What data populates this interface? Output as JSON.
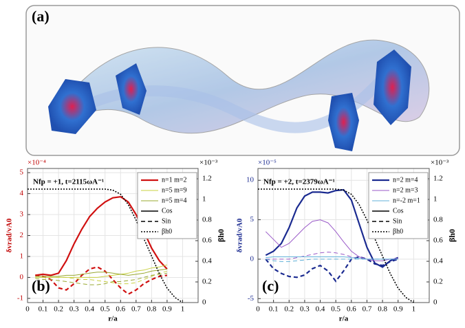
{
  "panel_a": {
    "label": "(a)"
  },
  "chart_data": [
    {
      "type": "line",
      "panel_label": "(b)",
      "annotation": "Nfp = +1,  t=2115ωA⁻¹",
      "y_exponent": "×10⁻⁴",
      "y2_exponent": "×10⁻³",
      "xlabel": "r/a",
      "ylabel": "δvrad/vA0",
      "y2label": "βh0",
      "ylabel_color": "#c00000",
      "xlim": [
        0,
        1.1
      ],
      "xticks": [
        0,
        0.1,
        0.2,
        0.3,
        0.4,
        0.5,
        0.6,
        0.7,
        0.8,
        0.9,
        1
      ],
      "ylim": [
        -1.2,
        5.2
      ],
      "yticks": [
        -1,
        0,
        1,
        2,
        3,
        4,
        5
      ],
      "y2lim": [
        0,
        1.3
      ],
      "y2ticks": [
        0,
        0.2,
        0.4,
        0.6,
        0.8,
        1,
        1.2
      ],
      "grid": true,
      "x": [
        0.05,
        0.1,
        0.15,
        0.2,
        0.25,
        0.3,
        0.35,
        0.4,
        0.45,
        0.5,
        0.55,
        0.6,
        0.65,
        0.7,
        0.75,
        0.8,
        0.85,
        0.9
      ],
      "series": [
        {
          "name": "n=1 m=2",
          "color": "#d01010",
          "width": 2.2,
          "values": [
            0.1,
            0.15,
            0.1,
            0.2,
            0.8,
            1.6,
            2.3,
            2.9,
            3.3,
            3.6,
            3.8,
            3.85,
            3.6,
            3.0,
            2.2,
            1.4,
            0.8,
            0.4
          ],
          "sin_values": [
            0.1,
            0.05,
            -0.1,
            -0.5,
            -0.6,
            -0.3,
            0.1,
            0.4,
            0.5,
            0.3,
            -0.1,
            -0.5,
            -0.8,
            -0.6,
            -0.3,
            -0.1,
            0.05,
            0.1
          ]
        },
        {
          "name": "n=5 m=9",
          "color": "#c8d040",
          "width": 1,
          "values": [
            0,
            0,
            0,
            0,
            0,
            0,
            0,
            0,
            0,
            0.05,
            0.1,
            0.15,
            0.2,
            0.3,
            0.35,
            0.45,
            0.5,
            0.6
          ],
          "sin_values": [
            0,
            0,
            0,
            0,
            0,
            -0.05,
            -0.1,
            -0.1,
            -0.15,
            -0.2,
            -0.25,
            -0.3,
            -0.3,
            -0.25,
            -0.1,
            0.05,
            0.2,
            0.3
          ]
        },
        {
          "name": "n=5 m=4",
          "color": "#98a830",
          "width": 1,
          "values": [
            0.05,
            0.05,
            0.05,
            0.05,
            0.1,
            0.1,
            0.15,
            0.2,
            0.25,
            0.25,
            0.2,
            0.15,
            0.1,
            0.15,
            0.2,
            0.3,
            0.35,
            0.4
          ],
          "sin_values": [
            -0.05,
            -0.1,
            -0.1,
            -0.15,
            -0.2,
            -0.25,
            -0.3,
            -0.35,
            -0.35,
            -0.3,
            -0.2,
            -0.2,
            -0.15,
            -0.1,
            0,
            0.1,
            0.15,
            0.2
          ]
        }
      ],
      "style_legend": [
        "Cos",
        "Sin"
      ],
      "beta": {
        "name": "βh0",
        "axis": "y2",
        "color": "#000000",
        "x": [
          0,
          0.05,
          0.1,
          0.15,
          0.2,
          0.25,
          0.3,
          0.35,
          0.4,
          0.45,
          0.5,
          0.55,
          0.6,
          0.65,
          0.7,
          0.75,
          0.8,
          0.85,
          0.9,
          0.95,
          1
        ],
        "values": [
          1.1,
          1.1,
          1.1,
          1.1,
          1.1,
          1.1,
          1.1,
          1.1,
          1.1,
          1.1,
          1.1,
          1.09,
          1.05,
          0.95,
          0.8,
          0.62,
          0.45,
          0.28,
          0.14,
          0.05,
          0
        ]
      }
    },
    {
      "type": "line",
      "panel_label": "(c)",
      "annotation": "Nfp = +2,  t=2379ωA⁻¹",
      "y_exponent": "×10⁻⁵",
      "y2_exponent": "×10⁻³",
      "xlabel": "r/a",
      "ylabel": "δvrad/vA0",
      "y2label": "βh0",
      "ylabel_color": "#1a2a90",
      "xlim": [
        0,
        1.1
      ],
      "xticks": [
        0,
        0.1,
        0.2,
        0.3,
        0.4,
        0.5,
        0.6,
        0.7,
        0.8,
        0.9,
        1
      ],
      "ylim": [
        -5.5,
        11.5
      ],
      "yticks": [
        -5,
        0,
        5,
        10
      ],
      "y2lim": [
        0,
        1.3
      ],
      "y2ticks": [
        0,
        0.2,
        0.4,
        0.6,
        0.8,
        1,
        1.2
      ],
      "grid": true,
      "x": [
        0.05,
        0.1,
        0.15,
        0.2,
        0.25,
        0.3,
        0.35,
        0.4,
        0.45,
        0.5,
        0.55,
        0.6,
        0.65,
        0.7,
        0.75,
        0.8,
        0.85,
        0.9
      ],
      "series": [
        {
          "name": "n=2 m=4",
          "color": "#1a2a90",
          "width": 2.2,
          "values": [
            0.5,
            1,
            2,
            4,
            6.5,
            8,
            8.5,
            8.5,
            8.4,
            8.7,
            8.8,
            7.5,
            4.5,
            1.5,
            -0.5,
            -1,
            -0.2,
            0.2
          ],
          "sin_values": [
            0,
            -1.2,
            -1.8,
            -2.2,
            -2.3,
            -2,
            -1.2,
            -0.8,
            -1.5,
            -2.8,
            -1.5,
            0,
            0.3,
            0,
            -0.6,
            -0.8,
            -0.3,
            0
          ]
        },
        {
          "name": "n=2 m=3",
          "color": "#9a5ac8",
          "width": 1,
          "values": [
            3.5,
            2.5,
            1.5,
            2,
            3,
            4,
            4.8,
            5,
            4.6,
            3.5,
            2.2,
            1,
            0.3,
            0,
            -0.2,
            -0.2,
            0,
            0.1
          ],
          "sin_values": [
            0,
            0,
            0,
            0,
            0.2,
            0.4,
            0.6,
            0.8,
            0.9,
            0.8,
            0.6,
            0.3,
            0.1,
            0,
            0,
            0,
            0,
            0
          ]
        },
        {
          "name": "n=-2 m=1",
          "color": "#60b0d8",
          "width": 1,
          "values": [
            0.2,
            0.3,
            0.3,
            0.3,
            0.3,
            0.3,
            0.3,
            0.3,
            0.3,
            0.3,
            0.3,
            0.2,
            0.1,
            0,
            0,
            0,
            0,
            0
          ],
          "sin_values": [
            0,
            -0.2,
            -0.3,
            -0.3,
            -0.2,
            -0.1,
            0,
            0,
            0,
            0,
            0,
            0,
            0,
            0,
            0,
            0,
            0,
            0
          ]
        }
      ],
      "style_legend": [
        "Cos",
        "Sin"
      ],
      "beta": {
        "name": "βh0",
        "axis": "y2",
        "color": "#000000",
        "x": [
          0,
          0.05,
          0.1,
          0.15,
          0.2,
          0.25,
          0.3,
          0.35,
          0.4,
          0.45,
          0.5,
          0.55,
          0.6,
          0.65,
          0.7,
          0.75,
          0.8,
          0.85,
          0.9,
          0.95,
          1
        ],
        "values": [
          1.1,
          1.1,
          1.1,
          1.1,
          1.1,
          1.1,
          1.1,
          1.1,
          1.1,
          1.1,
          1.1,
          1.09,
          1.05,
          0.95,
          0.8,
          0.62,
          0.45,
          0.28,
          0.14,
          0.05,
          0
        ]
      }
    }
  ]
}
